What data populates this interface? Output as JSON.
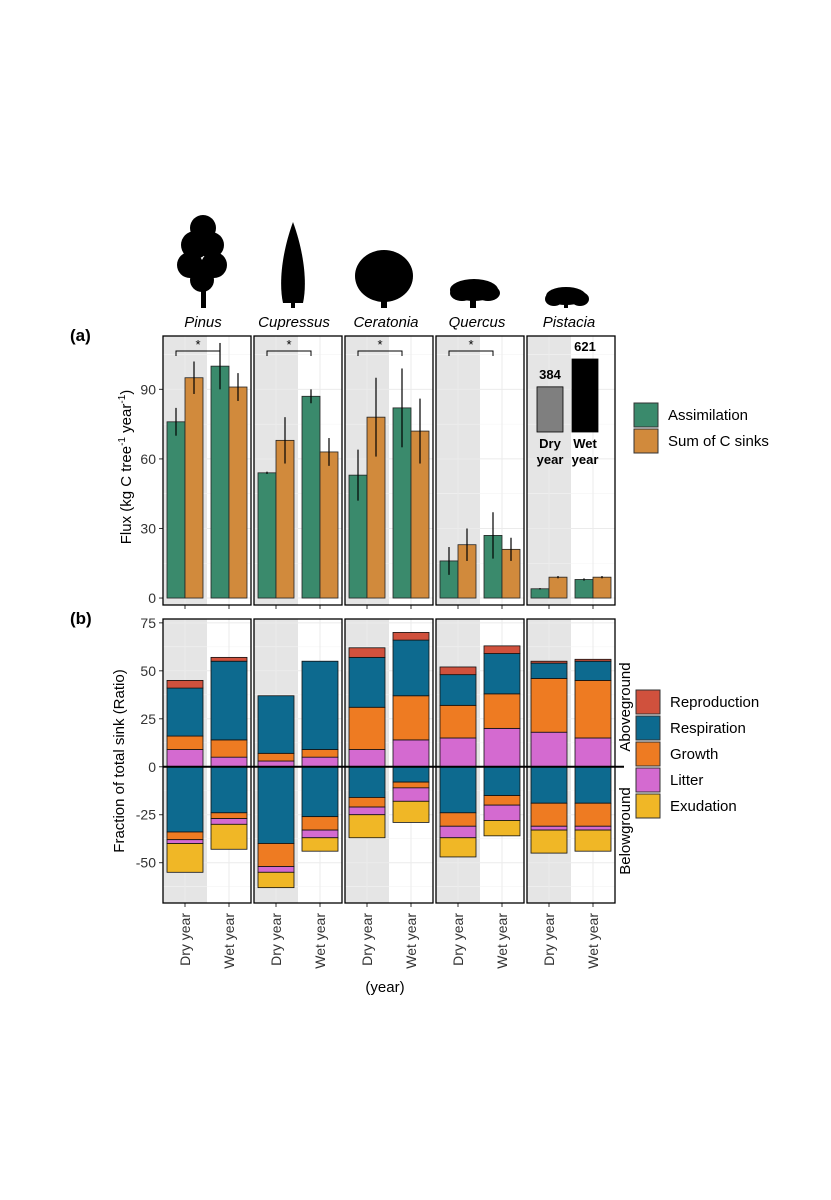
{
  "figure": {
    "panel_a_label": "(a)",
    "panel_b_label": "(b)",
    "xlabel": "(year)",
    "side_labels": {
      "above": "Aboveground",
      "below": "Belowground"
    }
  },
  "colors": {
    "assimilation": "#3a8a6c",
    "sinks": "#d18a3c",
    "dry_bg": "#e5e5e5",
    "reproduction": "#d0513d",
    "respiration": "#0d6a8f",
    "growth": "#ee7b22",
    "litter": "#d46ad0",
    "exudation": "#f0b726",
    "inset_dry": "#7f7f7f",
    "inset_wet": "#000000"
  },
  "chart_data": [
    {
      "type": "bar",
      "title": "(a)",
      "ylabel_parts": [
        "Flux (kg C tree",
        "-1",
        " year",
        "-1",
        ")"
      ],
      "ylim": [
        -3,
        113
      ],
      "yticks": [
        0,
        30,
        60,
        90
      ],
      "categories": [
        "Dry year",
        "Wet year"
      ],
      "facets": [
        "Pinus",
        "Cupressus",
        "Ceratonia",
        "Quercus",
        "Pistacia"
      ],
      "legend": [
        "Assimilation",
        "Sum of C sinks"
      ],
      "series": [
        {
          "name": "Assimilation",
          "values": {
            "Pinus": [
              76,
              100
            ],
            "Cupressus": [
              54,
              87
            ],
            "Ceratonia": [
              53,
              82
            ],
            "Quercus": [
              16,
              27
            ],
            "Pistacia": [
              4,
              8
            ]
          },
          "errors": {
            "Pinus": [
              6,
              10
            ],
            "Cupressus": [
              0.5,
              3
            ],
            "Ceratonia": [
              11,
              17
            ],
            "Quercus": [
              6,
              10
            ],
            "Pistacia": [
              0.3,
              0.5
            ]
          }
        },
        {
          "name": "Sum of C sinks",
          "values": {
            "Pinus": [
              95,
              91
            ],
            "Cupressus": [
              68,
              63
            ],
            "Ceratonia": [
              78,
              72
            ],
            "Quercus": [
              23,
              21
            ],
            "Pistacia": [
              9,
              9
            ]
          },
          "errors": {
            "Pinus": [
              7,
              6
            ],
            "Cupressus": [
              10,
              6
            ],
            "Ceratonia": [
              17,
              14
            ],
            "Quercus": [
              7,
              5
            ],
            "Pistacia": [
              0.5,
              0.5
            ]
          }
        }
      ],
      "significance": {
        "Pinus": "*",
        "Cupressus": "*",
        "Ceratonia": "*",
        "Quercus": "*"
      },
      "inset": {
        "facet": "Pistacia",
        "values": [
          384,
          621
        ],
        "value_labels": [
          "384",
          "621"
        ],
        "labels": [
          [
            "Dry",
            "year"
          ],
          [
            "Wet",
            "year"
          ]
        ]
      }
    },
    {
      "type": "bar",
      "stacked": true,
      "title": "(b)",
      "ylabel": "Fraction of total sink (Ratio)",
      "ylim": [
        -71,
        77
      ],
      "yticks": [
        75,
        50,
        25,
        0,
        -25,
        -50
      ],
      "ytick_labels": [
        "75",
        "50",
        "25",
        "0",
        "-25",
        "-50"
      ],
      "categories": [
        "Dry year",
        "Wet year"
      ],
      "legend": [
        "Reproduction",
        "Respiration",
        "Growth",
        "Litter",
        "Exudation"
      ],
      "stack_order_above": [
        "Litter",
        "Growth",
        "Respiration",
        "Reproduction"
      ],
      "stack_order_below": [
        "Respiration",
        "Growth",
        "Litter",
        "Exudation"
      ],
      "aboveground": {
        "Pinus": {
          "Dry year": [
            9,
            7,
            25,
            4
          ],
          "Wet year": [
            5,
            9,
            41,
            2
          ]
        },
        "Cupressus": {
          "Dry year": [
            3,
            4,
            30,
            0
          ],
          "Wet year": [
            5,
            4,
            46,
            0
          ]
        },
        "Ceratonia": {
          "Dry year": [
            9,
            22,
            26,
            5
          ],
          "Wet year": [
            14,
            23,
            29,
            4
          ]
        },
        "Quercus": {
          "Dry year": [
            15,
            17,
            16,
            4
          ],
          "Wet year": [
            20,
            18,
            21,
            4
          ]
        },
        "Pistacia": {
          "Dry year": [
            18,
            28,
            8,
            1
          ],
          "Wet year": [
            15,
            30,
            10,
            1
          ]
        }
      },
      "belowground": {
        "Pinus": {
          "Dry year": [
            -34,
            -4,
            -2,
            -15
          ],
          "Wet year": [
            -24,
            -3,
            -3,
            -13
          ]
        },
        "Cupressus": {
          "Dry year": [
            -40,
            -12,
            -3,
            -8
          ],
          "Wet year": [
            -26,
            -7,
            -4,
            -7
          ]
        },
        "Ceratonia": {
          "Dry year": [
            -16,
            -5,
            -4,
            -12
          ],
          "Wet year": [
            -8,
            -3,
            -7,
            -11
          ]
        },
        "Quercus": {
          "Dry year": [
            -24,
            -7,
            -6,
            -10
          ],
          "Wet year": [
            -15,
            -5,
            -8,
            -8
          ]
        },
        "Pistacia": {
          "Dry year": [
            -19,
            -12,
            -2,
            -12
          ],
          "Wet year": [
            -19,
            -12,
            -2,
            -11
          ]
        }
      }
    }
  ]
}
